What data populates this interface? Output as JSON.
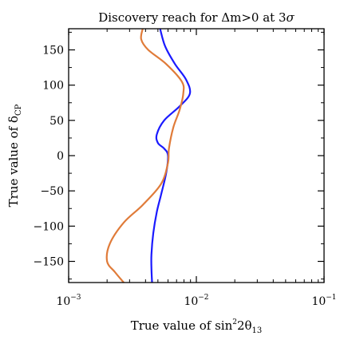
{
  "chart_data": {
    "type": "line",
    "title": {
      "text": "Discovery reach for ",
      "symbol": "Δm>0 at 3",
      "sigma": "σ"
    },
    "xlabel": {
      "text": "True value of sin",
      "sup": "2",
      "mid": "2θ",
      "sub": "13"
    },
    "ylabel": {
      "text": "True value of δ",
      "sub": "CP"
    },
    "x_scale": "log",
    "xlim": [
      0.001,
      0.1
    ],
    "ylim": [
      -180,
      180
    ],
    "x_ticks": [
      {
        "value": 0.001,
        "base": "10",
        "exp": "−3"
      },
      {
        "value": 0.01,
        "base": "10",
        "exp": "−2"
      },
      {
        "value": 0.1,
        "base": "10",
        "exp": "−1"
      }
    ],
    "y_ticks": [
      {
        "value": 150,
        "label": "150"
      },
      {
        "value": 100,
        "label": "100"
      },
      {
        "value": 50,
        "label": "50"
      },
      {
        "value": 0,
        "label": "0"
      },
      {
        "value": -50,
        "label": "−50"
      },
      {
        "value": -100,
        "label": "−100"
      },
      {
        "value": -150,
        "label": "−150"
      }
    ],
    "grid": false,
    "series": [
      {
        "color": "#1a1aff",
        "points": [
          [
            0.0045,
            -180
          ],
          [
            0.00445,
            -160
          ],
          [
            0.00445,
            -140
          ],
          [
            0.0046,
            -110
          ],
          [
            0.0049,
            -80
          ],
          [
            0.0053,
            -55
          ],
          [
            0.0058,
            -25
          ],
          [
            0.006,
            0
          ],
          [
            0.0056,
            10
          ],
          [
            0.005,
            18
          ],
          [
            0.0049,
            30
          ],
          [
            0.0056,
            50
          ],
          [
            0.0074,
            70
          ],
          [
            0.0089,
            88
          ],
          [
            0.0083,
            108
          ],
          [
            0.0068,
            130
          ],
          [
            0.0057,
            155
          ],
          [
            0.0052,
            180
          ]
        ]
      },
      {
        "color": "#e07b39",
        "points": [
          [
            0.0027,
            -180
          ],
          [
            0.0023,
            -165
          ],
          [
            0.002,
            -150
          ],
          [
            0.0021,
            -125
          ],
          [
            0.0027,
            -95
          ],
          [
            0.0038,
            -70
          ],
          [
            0.0053,
            -40
          ],
          [
            0.006,
            -10
          ],
          [
            0.0061,
            10
          ],
          [
            0.0066,
            40
          ],
          [
            0.0074,
            65
          ],
          [
            0.0079,
            88
          ],
          [
            0.0077,
            105
          ],
          [
            0.0058,
            130
          ],
          [
            0.0042,
            150
          ],
          [
            0.0037,
            165
          ],
          [
            0.0038,
            180
          ]
        ]
      }
    ]
  }
}
